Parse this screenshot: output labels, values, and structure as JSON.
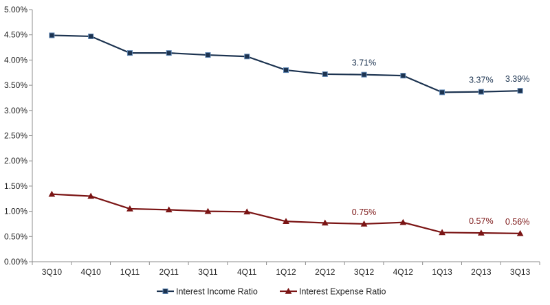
{
  "chart_data": {
    "type": "line",
    "categories": [
      "3Q10",
      "4Q10",
      "1Q11",
      "2Q11",
      "3Q11",
      "4Q11",
      "1Q12",
      "2Q12",
      "3Q12",
      "4Q12",
      "1Q13",
      "2Q13",
      "3Q13"
    ],
    "ylim": [
      0,
      5.0
    ],
    "yticks": [
      "0.00%",
      "0.50%",
      "1.00%",
      "1.50%",
      "2.00%",
      "2.50%",
      "3.00%",
      "3.50%",
      "4.00%",
      "4.50%",
      "5.00%"
    ],
    "legend_position": "bottom",
    "grid": false,
    "series": [
      {
        "name": "Interest Income Ratio",
        "color": "#1c3350",
        "marker": "square",
        "values": [
          4.49,
          4.47,
          4.14,
          4.14,
          4.1,
          4.07,
          3.8,
          3.72,
          3.71,
          3.69,
          3.36,
          3.37,
          3.39
        ],
        "labels": [
          {
            "index": 8,
            "text": "3.71%"
          },
          {
            "index": 11,
            "text": "3.37%"
          },
          {
            "index": 12,
            "text": "3.39%"
          }
        ]
      },
      {
        "name": "Interest Expense Ratio",
        "color": "#7b1515",
        "marker": "triangle",
        "values": [
          1.34,
          1.3,
          1.05,
          1.03,
          1.0,
          0.99,
          0.8,
          0.77,
          0.75,
          0.78,
          0.58,
          0.57,
          0.56
        ],
        "labels": [
          {
            "index": 8,
            "text": "0.75%"
          },
          {
            "index": 11,
            "text": "0.57%"
          },
          {
            "index": 12,
            "text": "0.56%"
          }
        ]
      }
    ]
  }
}
